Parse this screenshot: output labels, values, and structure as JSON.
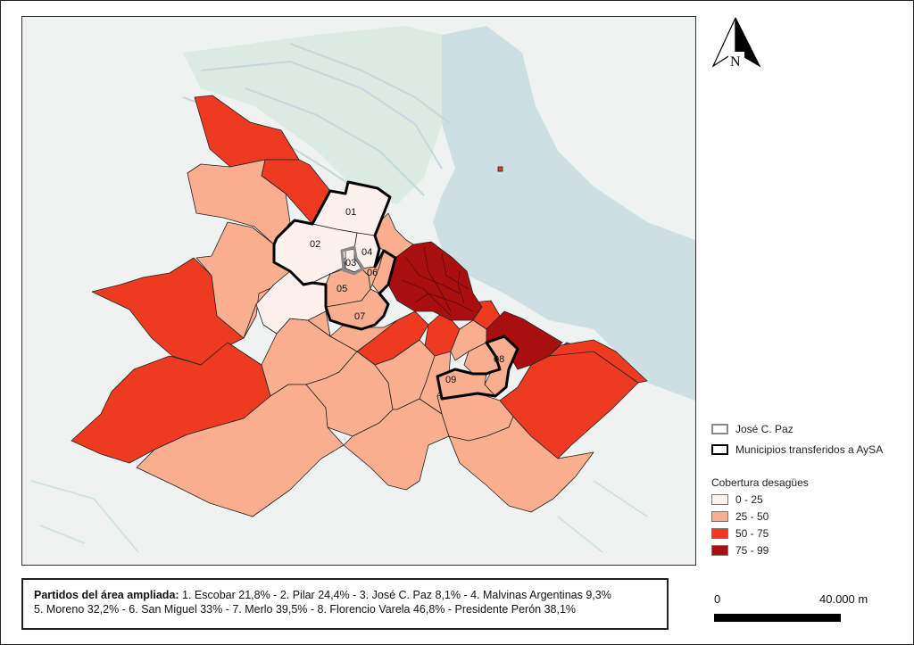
{
  "north_arrow": {
    "letter": "N"
  },
  "district_labels": [
    "01",
    "02",
    "03",
    "04",
    "05",
    "06",
    "07",
    "08",
    "09"
  ],
  "legend": {
    "outline_items": [
      {
        "label": "José C. Paz",
        "stroke": "#8a8a8a"
      },
      {
        "label": "Municipios transferidos a AySA",
        "stroke": "#000000"
      }
    ],
    "title": "Cobertura desagües",
    "classes": [
      {
        "label": "0 - 25",
        "color": "#fdf1ee"
      },
      {
        "label": "25 - 50",
        "color": "#f9ae90"
      },
      {
        "label": "50 - 75",
        "color": "#ef3a22"
      },
      {
        "label": "75 - 99",
        "color": "#a90f0f"
      }
    ]
  },
  "caption": {
    "heading": "Partidos del área ampliada:",
    "line1": " 1. Escobar 21,8% - 2. Pilar 24,4% - 3. José C. Paz 8,1% - 4. Malvinas Argentinas 9,3%",
    "line2": "5. Moreno 32,2% - 6. San Miguel 33% - 7. Merlo 39,5% - 8. Florencio Varela 46,8% - Presidente Perón 38,1%"
  },
  "scale_bar": {
    "start": "0",
    "end": "40.000 m"
  },
  "colors": {
    "water": "#cddfe3",
    "land": "#eef2f0",
    "light_green": "#dcebe2"
  }
}
